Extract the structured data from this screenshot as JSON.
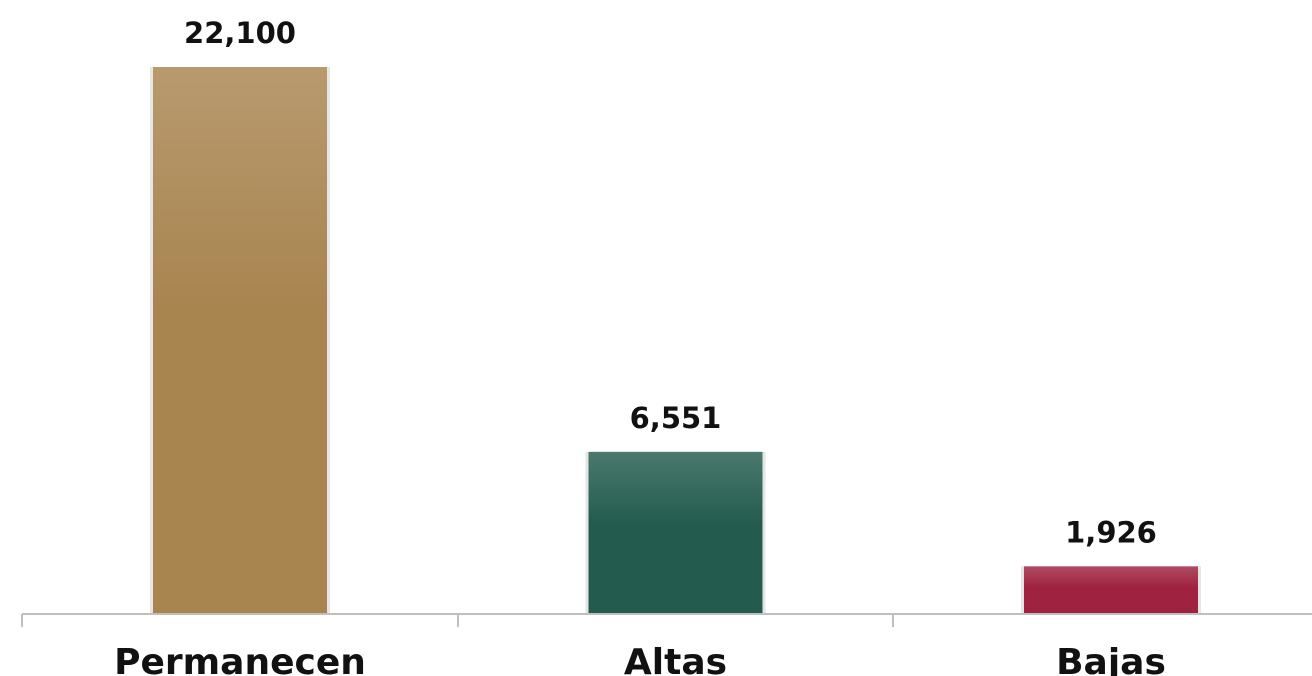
{
  "chart_data": {
    "type": "bar",
    "categories": [
      "Permanecen",
      "Altas",
      "Bajas"
    ],
    "values": [
      22100,
      6551,
      1926
    ],
    "value_labels": [
      "22,100",
      "6,551",
      "1,926"
    ],
    "colors": [
      "#a8844f",
      "#235b4e",
      "#9f2241"
    ],
    "ylim": [
      0,
      22100
    ],
    "grid": false,
    "legend": "none"
  }
}
